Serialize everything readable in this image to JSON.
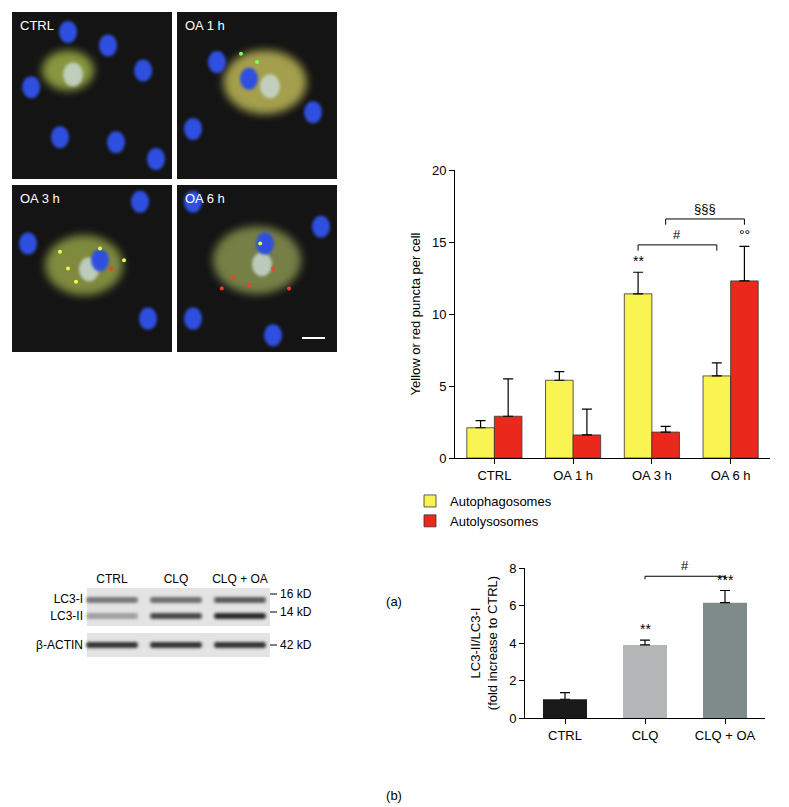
{
  "chart_data": [
    {
      "type": "bar",
      "categories": [
        "CTRL",
        "OA 1 h",
        "OA 3 h",
        "OA 6 h"
      ],
      "series": [
        {
          "name": "Autophagosomes",
          "color": "#f9f451",
          "values": [
            2.1,
            5.4,
            11.4,
            5.7
          ],
          "errors": [
            0.5,
            0.6,
            1.5,
            0.9
          ]
        },
        {
          "name": "Autolysosomes",
          "color": "#e8291c",
          "values": [
            2.9,
            1.6,
            1.8,
            12.3
          ],
          "errors": [
            2.6,
            1.8,
            0.4,
            2.4
          ]
        }
      ],
      "y_label": [
        "Yellow or red puncta per cell"
      ],
      "ylim": [
        0,
        20
      ],
      "yticks": [
        0,
        5,
        10,
        15,
        20
      ],
      "grid": false,
      "legend": "bottom",
      "annotations": [
        {
          "text": "**",
          "category": "OA 3 h",
          "series": "Autophagosomes"
        },
        {
          "text": "°°",
          "category": "OA 6 h",
          "series": "Autolysosomes"
        },
        {
          "text": "#",
          "from": {
            "category": "OA 3 h",
            "series": "Autophagosomes"
          },
          "to": {
            "category": "OA 6 h",
            "series": "Autophagosomes"
          }
        },
        {
          "text": "§§§",
          "from": {
            "category": "OA 3 h",
            "series": "Autolysosomes"
          },
          "to": {
            "category": "OA 6 h",
            "series": "Autolysosomes"
          }
        }
      ]
    },
    {
      "type": "bar",
      "categories": [
        "CTRL",
        "CLQ",
        "CLQ + OA"
      ],
      "values": [
        1.0,
        3.9,
        6.15
      ],
      "errors": [
        0.35,
        0.25,
        0.65
      ],
      "colors": [
        "#1a1a1a",
        "#b3b6b7",
        "#7f8a8a"
      ],
      "y_label": [
        "LC3-II/LC3-I",
        "(fold increase to CTRL)"
      ],
      "ylim": [
        0,
        8
      ],
      "yticks": [
        0,
        2,
        4,
        6,
        8
      ],
      "grid": false,
      "annotations": [
        {
          "text": "**",
          "category": "CLQ"
        },
        {
          "text": "***",
          "category": "CLQ + OA"
        },
        {
          "text": "#",
          "from": {
            "category": "CLQ"
          },
          "to": {
            "category": "CLQ + OA"
          }
        }
      ]
    }
  ],
  "micrographs": {
    "labels": [
      "CTRL",
      "OA 1 h",
      "OA 3 h",
      "OA 6 h"
    ]
  },
  "blot": {
    "lanes": [
      "CTRL",
      "CLQ",
      "CLQ + OA"
    ],
    "bands": [
      {
        "label": "LC3-I",
        "size": "16 kD"
      },
      {
        "label": "LC3-II",
        "size": "14 kD"
      },
      {
        "label": "β-ACTIN",
        "size": "42 kD"
      }
    ]
  },
  "panel_labels": [
    "(a)",
    "(b)"
  ]
}
